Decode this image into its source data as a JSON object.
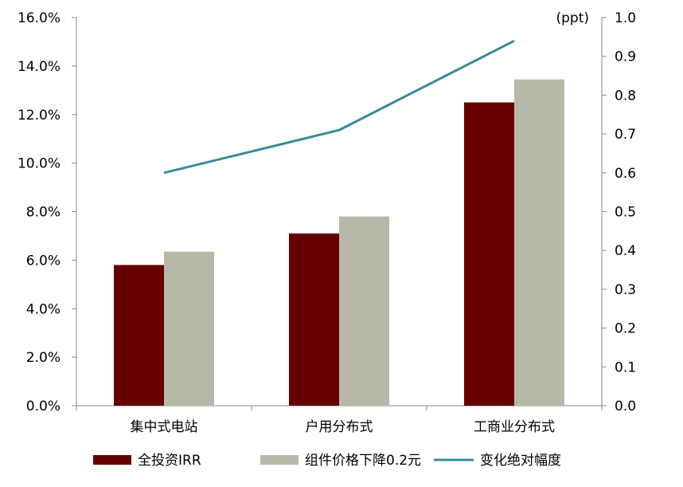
{
  "chart_data": {
    "type": "bar",
    "categories": [
      "集中式电站",
      "户用分布式",
      "工商业分布式"
    ],
    "series": [
      {
        "name": "全投资IRR",
        "kind": "bar",
        "axis": "left",
        "values": [
          5.8,
          7.1,
          12.5
        ],
        "color": "#660000"
      },
      {
        "name": "组件价格下降0.2元",
        "kind": "bar",
        "axis": "left",
        "values": [
          6.35,
          7.8,
          13.45
        ],
        "color": "#b8b8a8"
      },
      {
        "name": "变化绝对幅度",
        "kind": "line",
        "axis": "right",
        "values": [
          0.6,
          0.71,
          0.94
        ],
        "color": "#3a8a9e"
      }
    ],
    "y_left": {
      "ylim": [
        0,
        16
      ],
      "ticks": [
        0,
        2,
        4,
        6,
        8,
        10,
        12,
        14,
        16
      ],
      "tick_labels": [
        "0.0%",
        "2.0%",
        "4.0%",
        "6.0%",
        "8.0%",
        "10.0%",
        "12.0%",
        "14.0%",
        "16.0%"
      ]
    },
    "y_right": {
      "unit": "(ppt)",
      "ylim": [
        0,
        1
      ],
      "ticks": [
        0,
        0.1,
        0.2,
        0.3,
        0.4,
        0.5,
        0.6,
        0.7,
        0.8,
        0.9,
        1.0
      ],
      "tick_labels": [
        "0.0",
        "0.1",
        "0.2",
        "0.3",
        "0.4",
        "0.5",
        "0.6",
        "0.7",
        "0.8",
        "0.9",
        "1.0"
      ]
    },
    "grid": false,
    "legend_position": "bottom",
    "axis_color": "#888888"
  }
}
